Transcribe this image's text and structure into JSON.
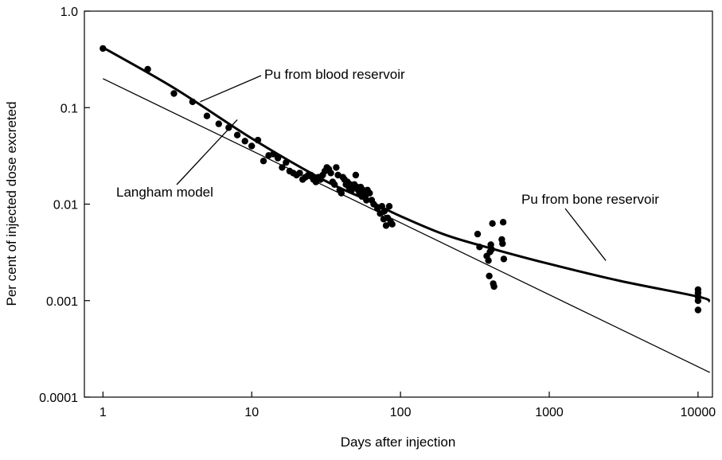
{
  "chart_data": {
    "type": "scatter",
    "xlabel": "Days after injection",
    "ylabel": "Per cent of injected dose excreted",
    "x_scale": "log",
    "y_scale": "log",
    "xlim": [
      0.75,
      12500
    ],
    "ylim": [
      0.0001,
      1.0
    ],
    "grid": false,
    "x_ticks": [
      {
        "value": 1,
        "label": "1"
      },
      {
        "value": 10,
        "label": "10"
      },
      {
        "value": 100,
        "label": "100"
      },
      {
        "value": 1000,
        "label": "1000"
      },
      {
        "value": 10000,
        "label": "10000"
      }
    ],
    "y_ticks": [
      {
        "value": 1.0,
        "label": "1.0"
      },
      {
        "value": 0.1,
        "label": "0.1"
      },
      {
        "value": 0.01,
        "label": "0.01"
      },
      {
        "value": 0.001,
        "label": "0.001"
      },
      {
        "value": 0.0001,
        "label": "0.0001"
      }
    ],
    "points": [
      [
        1,
        0.41
      ],
      [
        2,
        0.25
      ],
      [
        3,
        0.14
      ],
      [
        4,
        0.115
      ],
      [
        5,
        0.082
      ],
      [
        6,
        0.068
      ],
      [
        7,
        0.062
      ],
      [
        8,
        0.052
      ],
      [
        9,
        0.045
      ],
      [
        10,
        0.04
      ],
      [
        11,
        0.046
      ],
      [
        12,
        0.028
      ],
      [
        13,
        0.032
      ],
      [
        14,
        0.033
      ],
      [
        15,
        0.03
      ],
      [
        16,
        0.024
      ],
      [
        17,
        0.027
      ],
      [
        18,
        0.022
      ],
      [
        19,
        0.021
      ],
      [
        20,
        0.02
      ],
      [
        21,
        0.021
      ],
      [
        22,
        0.018
      ],
      [
        23,
        0.019
      ],
      [
        24,
        0.02
      ],
      [
        25,
        0.02
      ],
      [
        26,
        0.018
      ],
      [
        27,
        0.017
      ],
      [
        28,
        0.019
      ],
      [
        29,
        0.018
      ],
      [
        30,
        0.02
      ],
      [
        31,
        0.022
      ],
      [
        32,
        0.024
      ],
      [
        33,
        0.023
      ],
      [
        34,
        0.021
      ],
      [
        35,
        0.017
      ],
      [
        36,
        0.016
      ],
      [
        37,
        0.024
      ],
      [
        38,
        0.02
      ],
      [
        39,
        0.014
      ],
      [
        40,
        0.013
      ],
      [
        41,
        0.019
      ],
      [
        42,
        0.018
      ],
      [
        43,
        0.016
      ],
      [
        44,
        0.017
      ],
      [
        45,
        0.015
      ],
      [
        46,
        0.016
      ],
      [
        47,
        0.014
      ],
      [
        48,
        0.015
      ],
      [
        49,
        0.016
      ],
      [
        50,
        0.02
      ],
      [
        51,
        0.015
      ],
      [
        52,
        0.014
      ],
      [
        53,
        0.013
      ],
      [
        54,
        0.015
      ],
      [
        55,
        0.012
      ],
      [
        56,
        0.014
      ],
      [
        57,
        0.013
      ],
      [
        58,
        0.012
      ],
      [
        59,
        0.011
      ],
      [
        60,
        0.014
      ],
      [
        62,
        0.013
      ],
      [
        64,
        0.011
      ],
      [
        66,
        0.01
      ],
      [
        70,
        0.009
      ],
      [
        73,
        0.008
      ],
      [
        75,
        0.0095
      ],
      [
        77,
        0.007
      ],
      [
        78,
        0.0085
      ],
      [
        80,
        0.006
      ],
      [
        82,
        0.0072
      ],
      [
        84,
        0.0095
      ],
      [
        86,
        0.0065
      ],
      [
        88,
        0.0062
      ],
      [
        330,
        0.0049
      ],
      [
        340,
        0.0036
      ],
      [
        380,
        0.0029
      ],
      [
        390,
        0.0026
      ],
      [
        395,
        0.0018
      ],
      [
        400,
        0.0032
      ],
      [
        405,
        0.0038
      ],
      [
        410,
        0.0034
      ],
      [
        415,
        0.0063
      ],
      [
        420,
        0.0015
      ],
      [
        425,
        0.0014
      ],
      [
        480,
        0.0043
      ],
      [
        485,
        0.0039
      ],
      [
        490,
        0.0065
      ],
      [
        495,
        0.0027
      ],
      [
        10000,
        0.0013
      ],
      [
        10000,
        0.0012
      ],
      [
        10000,
        0.0011
      ],
      [
        10000,
        0.001
      ],
      [
        10000,
        0.0008
      ]
    ],
    "series": [
      {
        "name": "Pu from blood reservoir",
        "style": "thick",
        "points": [
          [
            1,
            0.42
          ],
          [
            3,
            0.16
          ],
          [
            10,
            0.048
          ],
          [
            30,
            0.018
          ],
          [
            60,
            0.011
          ],
          [
            100,
            0.0075
          ],
          [
            200,
            0.0048
          ],
          [
            400,
            0.0035
          ],
          [
            1000,
            0.0024
          ],
          [
            3000,
            0.0016
          ],
          [
            10000,
            0.0011
          ],
          [
            12000,
            0.00098
          ]
        ]
      },
      {
        "name": "Langham model",
        "style": "thin",
        "points": [
          [
            1,
            0.2
          ],
          [
            12000,
            0.00018
          ]
        ]
      }
    ],
    "annotations": [
      {
        "text": "Pu from blood reservoir",
        "target": [
          4.5,
          0.115
        ]
      },
      {
        "text": "Langham model",
        "target": [
          8,
          0.075
        ]
      },
      {
        "text": "Pu from bone reservoir",
        "target": [
          2400,
          0.0026
        ]
      }
    ]
  }
}
